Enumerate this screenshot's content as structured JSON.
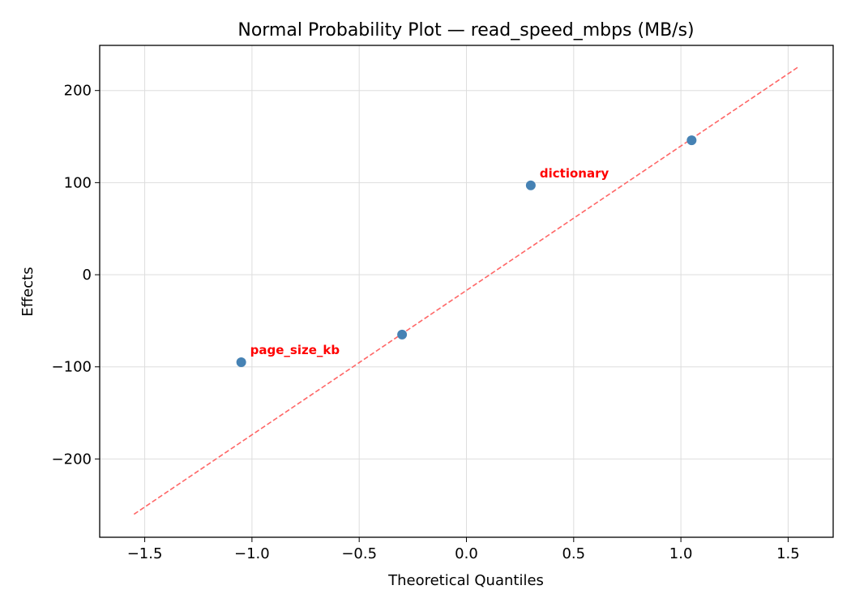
{
  "chart_data": {
    "type": "scatter",
    "title": "Normal Probability Plot — read_speed_mbps (MB/s)",
    "xlabel": "Theoretical Quantiles",
    "ylabel": "Effects",
    "xlim": [
      -1.71,
      1.71
    ],
    "ylim": [
      -285,
      249
    ],
    "xticks": [
      -1.5,
      -1.0,
      -0.5,
      0.0,
      0.5,
      1.0,
      1.5
    ],
    "xtick_labels": [
      "−1.5",
      "−1.0",
      "−0.5",
      "0.0",
      "0.5",
      "1.0",
      "1.5"
    ],
    "yticks": [
      200,
      100,
      0,
      -100,
      -200
    ],
    "ytick_labels": [
      "200",
      "100",
      "0",
      "−100",
      "−200"
    ],
    "grid": true,
    "points": [
      {
        "x": -1.05,
        "y": -95,
        "label": "page_size_kb"
      },
      {
        "x": -0.3,
        "y": -65,
        "label": ""
      },
      {
        "x": 0.3,
        "y": 97,
        "label": "dictionary"
      },
      {
        "x": 1.05,
        "y": 146,
        "label": ""
      }
    ],
    "reference_line": {
      "x": [
        -1.55,
        1.55
      ],
      "y": [
        -260,
        226
      ],
      "style": "dashed"
    },
    "colors": {
      "points": "#4682b4",
      "line": "#ff6666",
      "labels": "#ff0000"
    }
  }
}
